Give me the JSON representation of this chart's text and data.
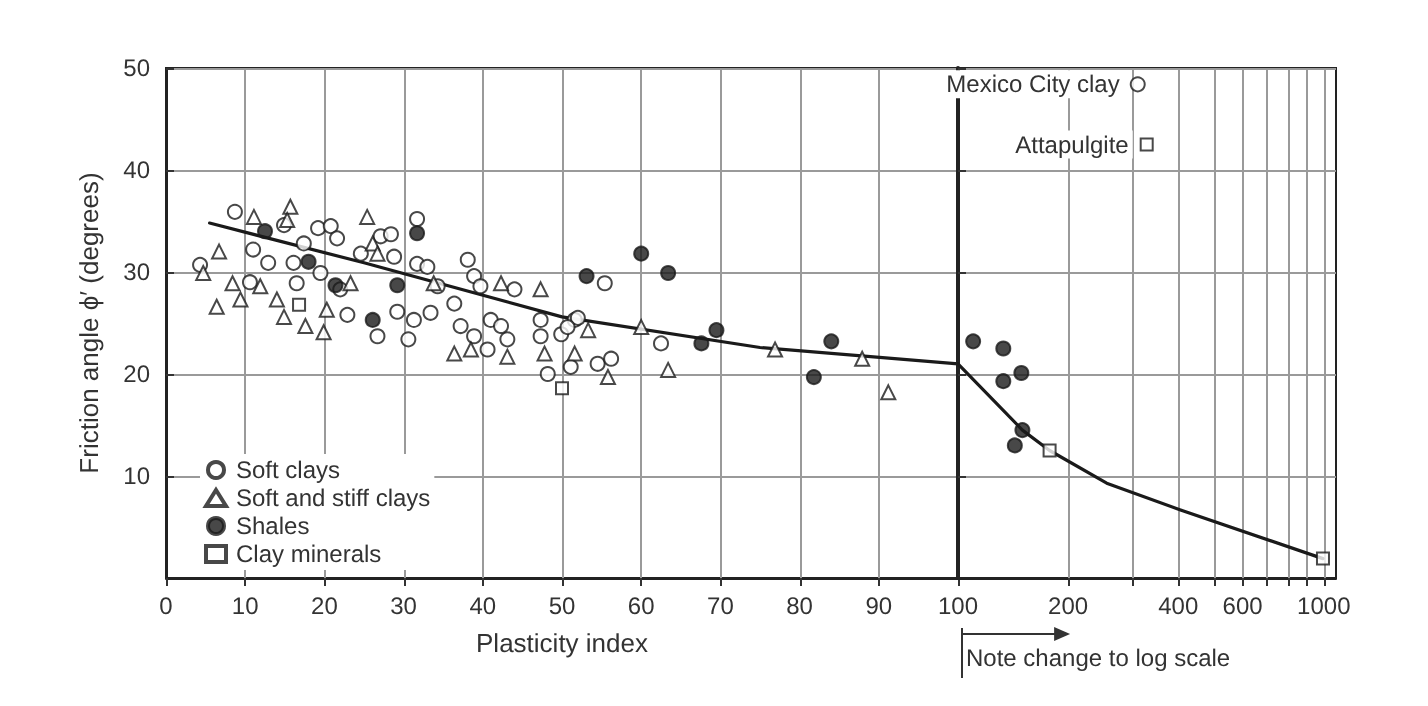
{
  "chart_data": [
    {
      "type": "scatter",
      "xlabel": "Plasticity index",
      "ylabel": "Friction angle ϕ′ (degrees)",
      "xlim": [
        0,
        100
      ],
      "xticks": [
        0,
        10,
        20,
        30,
        40,
        50,
        60,
        70,
        80,
        90,
        100
      ],
      "ylim": [
        0,
        50
      ],
      "yticks": [
        10,
        20,
        30,
        40,
        50
      ],
      "grid": true,
      "legend": "bottom left",
      "series": [
        {
          "name": "Soft clays",
          "marker": "circle",
          "color": "#ffffff",
          "x": [
            4.3,
            8.7,
            10.6,
            11.0,
            12.9,
            14.9,
            16.1,
            16.5,
            17.4,
            19.2,
            20.8,
            21.6,
            19.5,
            22.0,
            22.9,
            24.6,
            26.7,
            27.1,
            28.4,
            28.8,
            29.2,
            30.6,
            31.7,
            31.7,
            33.0,
            31.3,
            33.4,
            34.3,
            36.4,
            38.1,
            37.2,
            38.9,
            39.7,
            38.9,
            41.0,
            40.6,
            44.0,
            43.1,
            42.3,
            47.3,
            47.3,
            48.2,
            49.9,
            50.7,
            51.6,
            55.4,
            52.0,
            50.7,
            54.5,
            56.2,
            51.1,
            62.5
          ],
          "values": [
            30.7,
            35.9,
            29.0,
            32.2,
            30.9,
            34.6,
            30.9,
            28.9,
            32.8,
            34.3,
            34.5,
            33.3,
            29.9,
            28.3,
            25.8,
            31.8,
            23.7,
            33.5,
            33.7,
            31.5,
            26.1,
            23.4,
            35.2,
            30.8,
            30.5,
            25.3,
            26.0,
            28.6,
            26.9,
            31.2,
            24.7,
            29.6,
            28.6,
            23.7,
            25.3,
            22.4,
            28.3,
            23.4,
            24.7,
            25.3,
            23.7,
            20.0,
            23.9,
            null,
            25.3,
            28.9,
            25.5,
            24.6,
            21.0,
            21.5,
            20.7,
            23.0
          ]
        },
        {
          "name": "Soft and stiff clays",
          "marker": "triangle",
          "color": "#ffffff",
          "x": [
            6.7,
            4.7,
            6.4,
            8.4,
            9.4,
            11.1,
            11.9,
            14.0,
            14.9,
            15.7,
            15.3,
            17.6,
            19.9,
            20.3,
            23.3,
            25.4,
            26.1,
            26.7,
            33.8,
            36.4,
            38.5,
            43.1,
            47.3,
            47.8,
            42.3,
            60.0,
            53.3,
            63.4,
            55.8,
            76.9,
            87.9,
            91.2,
            51.6
          ],
          "values": [
            32.0,
            29.9,
            26.6,
            28.9,
            27.3,
            35.4,
            28.6,
            27.3,
            25.6,
            36.4,
            35.1,
            24.7,
            24.1,
            26.3,
            28.9,
            35.4,
            32.8,
            31.8,
            28.9,
            22.0,
            22.4,
            21.7,
            28.3,
            22.0,
            28.9,
            24.6,
            24.3,
            20.4,
            19.7,
            22.4,
            21.5,
            18.2,
            22.0
          ]
        },
        {
          "name": "Shales",
          "marker": "circle",
          "color": "#1a1a1a",
          "x": [
            12.5,
            18.0,
            21.4,
            29.2,
            31.7,
            26.1,
            53.1,
            60.0,
            63.4,
            67.6,
            69.5,
            81.8,
            84.0
          ],
          "values": [
            34.0,
            31.0,
            28.7,
            28.7,
            33.8,
            25.3,
            29.6,
            31.8,
            29.9,
            23.0,
            24.3,
            19.7,
            23.2
          ]
        },
        {
          "name": "Clay minerals",
          "marker": "square",
          "color": "#ffffff",
          "x": [
            16.8,
            50.0
          ],
          "values": [
            26.8,
            18.6
          ]
        },
        {
          "type": "line",
          "marker": "none",
          "color": "#1a1a1a",
          "x": [
            5.5,
            25,
            50,
            75,
            100
          ],
          "values": [
            34.8,
            30.9,
            25.6,
            22.6,
            21.0
          ]
        }
      ]
    },
    {
      "type": "scatter",
      "log": "x",
      "xlim": [
        100,
        1080
      ],
      "xticks": [
        200,
        {
          "value": 300,
          "label": null
        },
        400,
        {
          "value": 500,
          "label": null
        },
        600,
        {
          "value": 700,
          "label": null
        },
        {
          "value": 800,
          "label": null
        },
        {
          "value": 900,
          "label": null
        },
        1000
      ],
      "ylim": [
        0,
        50
      ],
      "yticks": [
        10,
        20,
        30,
        40,
        50
      ],
      "grid": true,
      "tick_labels": "x",
      "annotations": [
        {
          "text": "Mexico City clay",
          "x": 310,
          "y": 48.4
        },
        {
          "text": "Attapulgite",
          "x": 328,
          "y": 42.5
        },
        "Note change to log scale"
      ],
      "series": [
        {
          "marker": "circle",
          "color": "#ffffff",
          "x": [
            310
          ],
          "values": [
            48.4
          ]
        },
        {
          "marker": "circle",
          "color": "#1a1a1a",
          "x": [
            110,
            133,
            133,
            149,
            150,
            143
          ],
          "values": [
            23.2,
            22.5,
            19.3,
            20.1,
            14.5,
            13.0
          ]
        },
        {
          "marker": "square",
          "color": "#ffffff",
          "x": [
            178,
            328,
            995
          ],
          "values": [
            12.5,
            42.5,
            1.9
          ]
        },
        {
          "type": "line",
          "marker": "none",
          "color": "#1a1a1a",
          "x": [
            100,
            150,
            178,
            255,
            404,
            995
          ],
          "values": [
            21.0,
            14.5,
            12.5,
            9.3,
            6.7,
            1.9
          ]
        }
      ]
    }
  ]
}
